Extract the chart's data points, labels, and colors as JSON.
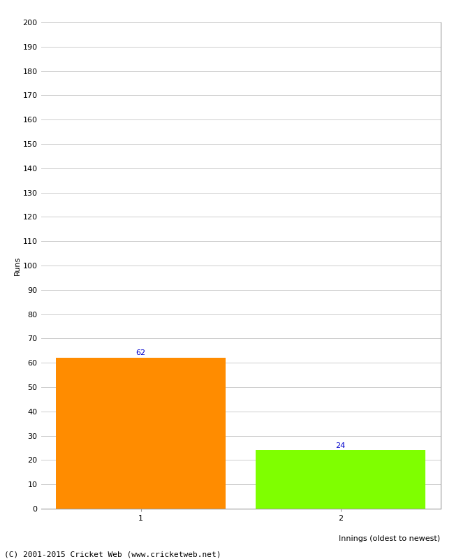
{
  "categories": [
    "1",
    "2"
  ],
  "values": [
    62,
    24
  ],
  "bar_colors": [
    "#FF8C00",
    "#7FFF00"
  ],
  "ylabel": "Runs",
  "xlabel": "Innings (oldest to newest)",
  "ylim": [
    0,
    200
  ],
  "ytick_step": 10,
  "bar_width": 0.85,
  "value_label_color": "#0000CC",
  "value_label_fontsize": 8,
  "axis_label_fontsize": 8,
  "tick_fontsize": 8,
  "footer_text": "(C) 2001-2015 Cricket Web (www.cricketweb.net)",
  "footer_fontsize": 8,
  "background_color": "#FFFFFF",
  "grid_color": "#CCCCCC"
}
